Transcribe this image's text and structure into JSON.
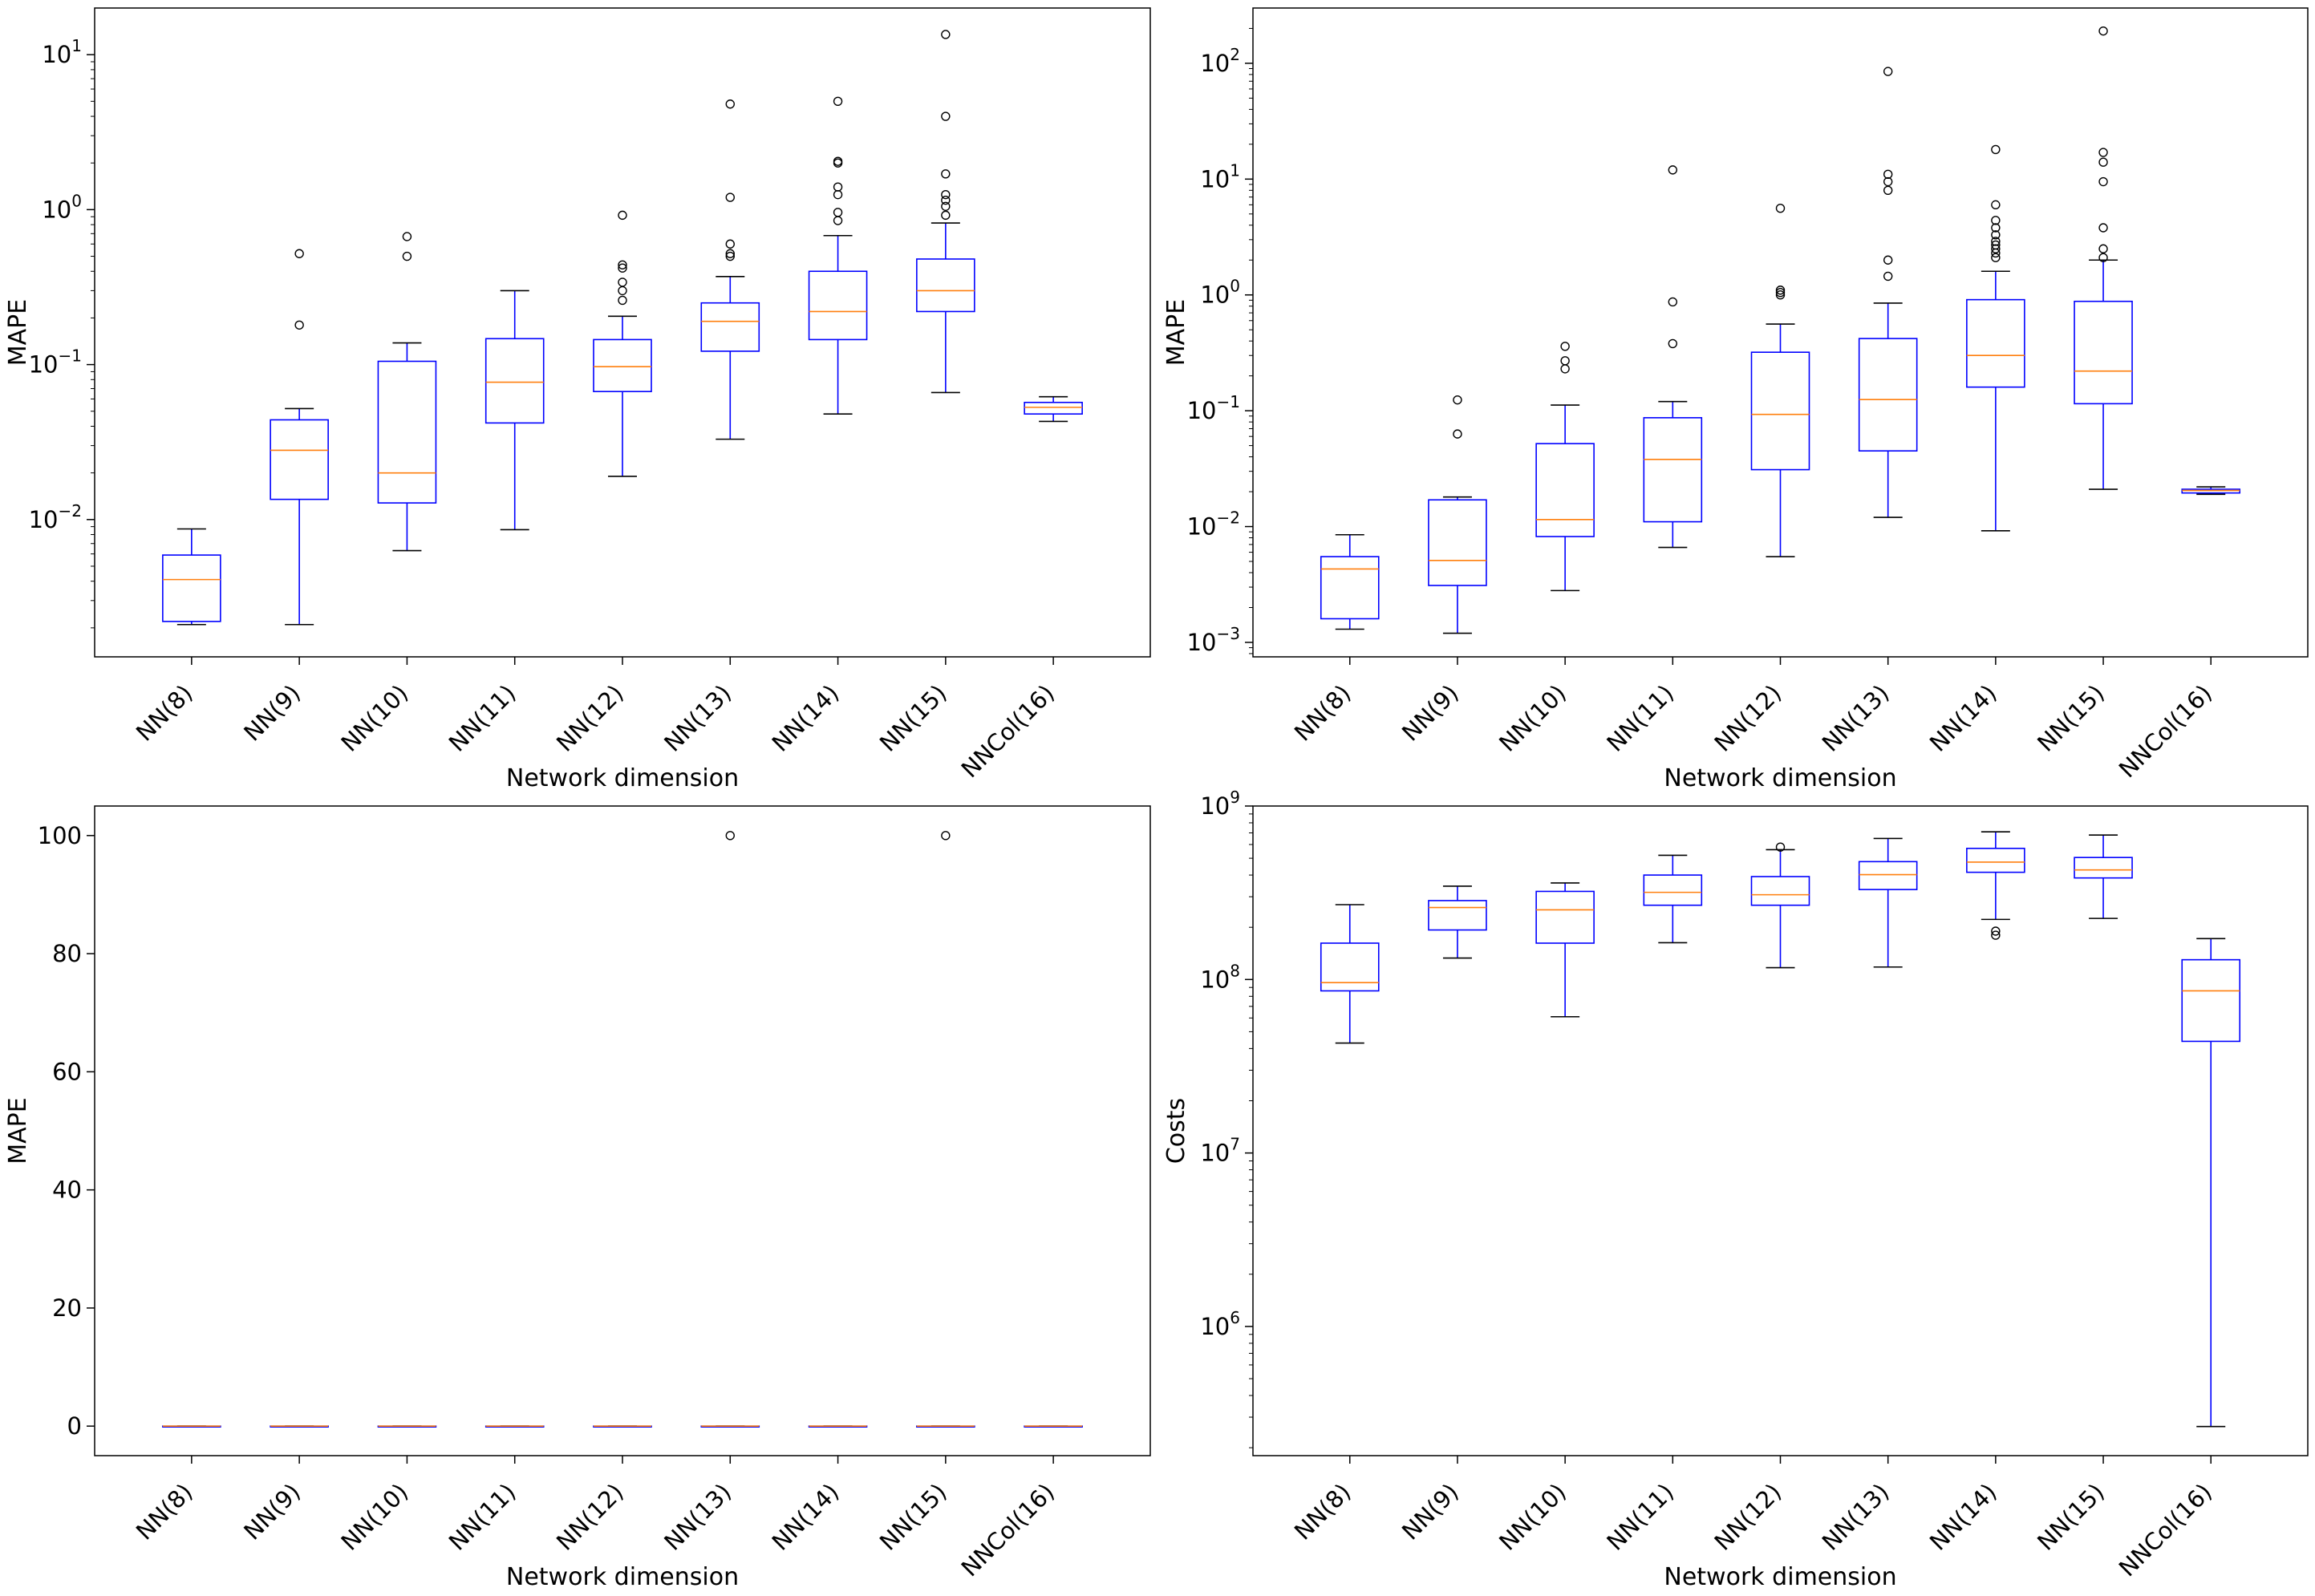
{
  "colors": {
    "box": "#0000ff",
    "median": "#ff7f0e",
    "whisker": "#000000",
    "flier": "#000000",
    "axes": "#000000",
    "background": "#ffffff"
  },
  "chart_data": [
    {
      "type": "box",
      "panel": "top-left",
      "xlabel": "Network dimension",
      "ylabel": "MAPE",
      "yscale": "log",
      "ylim": [
        0.0013,
        20
      ],
      "ytick_labels": [
        {
          "value": 0.01,
          "base": "10",
          "exp": "−2"
        },
        {
          "value": 0.1,
          "base": "10",
          "exp": "−1"
        },
        {
          "value": 1,
          "base": "10",
          "exp": "0"
        },
        {
          "value": 10,
          "base": "10",
          "exp": "1"
        }
      ],
      "categories": [
        "NN(8)",
        "NN(9)",
        "NN(10)",
        "NN(11)",
        "NN(12)",
        "NN(13)",
        "NN(14)",
        "NN(15)",
        "NNCol(16)"
      ],
      "boxes": [
        {
          "whislo": 0.0021,
          "q1": 0.0022,
          "med": 0.0041,
          "q3": 0.0059,
          "whishi": 0.0087,
          "fliers": []
        },
        {
          "whislo": 0.0021,
          "q1": 0.0135,
          "med": 0.028,
          "q3": 0.044,
          "whishi": 0.052,
          "fliers": [
            0.18,
            0.52
          ]
        },
        {
          "whislo": 0.0063,
          "q1": 0.0128,
          "med": 0.02,
          "q3": 0.105,
          "whishi": 0.138,
          "fliers": [
            0.5,
            0.67
          ]
        },
        {
          "whislo": 0.0086,
          "q1": 0.042,
          "med": 0.077,
          "q3": 0.147,
          "whishi": 0.3,
          "fliers": []
        },
        {
          "whislo": 0.019,
          "q1": 0.067,
          "med": 0.097,
          "q3": 0.145,
          "whishi": 0.205,
          "fliers": [
            0.26,
            0.3,
            0.34,
            0.42,
            0.44,
            0.92
          ]
        },
        {
          "whislo": 0.033,
          "q1": 0.122,
          "med": 0.19,
          "q3": 0.25,
          "whishi": 0.37,
          "fliers": [
            0.5,
            0.52,
            0.6,
            1.2,
            4.8
          ]
        },
        {
          "whislo": 0.048,
          "q1": 0.145,
          "med": 0.22,
          "q3": 0.4,
          "whishi": 0.68,
          "fliers": [
            0.85,
            0.96,
            1.25,
            1.4,
            2.0,
            2.05,
            5.0
          ]
        },
        {
          "whislo": 0.066,
          "q1": 0.22,
          "med": 0.3,
          "q3": 0.48,
          "whishi": 0.82,
          "fliers": [
            0.92,
            1.05,
            1.15,
            1.25,
            1.7,
            4.0,
            13.5
          ]
        },
        {
          "whislo": 0.043,
          "q1": 0.048,
          "med": 0.053,
          "q3": 0.057,
          "whishi": 0.062,
          "fliers": []
        }
      ]
    },
    {
      "type": "box",
      "panel": "top-right",
      "xlabel": "Network dimension",
      "ylabel": "MAPE",
      "yscale": "log",
      "ylim": [
        0.00075,
        300
      ],
      "ytick_labels": [
        {
          "value": 0.001,
          "base": "10",
          "exp": "−3"
        },
        {
          "value": 0.01,
          "base": "10",
          "exp": "−2"
        },
        {
          "value": 0.1,
          "base": "10",
          "exp": "−1"
        },
        {
          "value": 1,
          "base": "10",
          "exp": "0"
        },
        {
          "value": 10,
          "base": "10",
          "exp": "1"
        },
        {
          "value": 100,
          "base": "10",
          "exp": "2"
        }
      ],
      "categories": [
        "NN(8)",
        "NN(9)",
        "NN(10)",
        "NN(11)",
        "NN(12)",
        "NN(13)",
        "NN(14)",
        "NN(15)",
        "NNCol(16)"
      ],
      "boxes": [
        {
          "whislo": 0.0013,
          "q1": 0.0016,
          "med": 0.0043,
          "q3": 0.0055,
          "whishi": 0.0085,
          "fliers": []
        },
        {
          "whislo": 0.0012,
          "q1": 0.0031,
          "med": 0.0051,
          "q3": 0.017,
          "whishi": 0.018,
          "fliers": [
            0.063,
            0.124
          ]
        },
        {
          "whislo": 0.0028,
          "q1": 0.0082,
          "med": 0.0115,
          "q3": 0.052,
          "whishi": 0.112,
          "fliers": [
            0.23,
            0.27,
            0.36
          ]
        },
        {
          "whislo": 0.0066,
          "q1": 0.011,
          "med": 0.038,
          "q3": 0.087,
          "whishi": 0.12,
          "fliers": [
            0.38,
            0.87,
            12
          ]
        },
        {
          "whislo": 0.0055,
          "q1": 0.031,
          "med": 0.093,
          "q3": 0.32,
          "whishi": 0.56,
          "fliers": [
            1.0,
            1.05,
            1.1,
            5.6
          ]
        },
        {
          "whislo": 0.012,
          "q1": 0.045,
          "med": 0.125,
          "q3": 0.42,
          "whishi": 0.85,
          "fliers": [
            1.45,
            2.0,
            8.0,
            9.5,
            11,
            85
          ]
        },
        {
          "whislo": 0.0092,
          "q1": 0.16,
          "med": 0.3,
          "q3": 0.91,
          "whishi": 1.6,
          "fliers": [
            2.1,
            2.3,
            2.5,
            2.7,
            2.9,
            3.3,
            3.8,
            4.4,
            6.0,
            18
          ]
        },
        {
          "whislo": 0.021,
          "q1": 0.115,
          "med": 0.22,
          "q3": 0.88,
          "whishi": 2.0,
          "fliers": [
            2.1,
            2.5,
            3.8,
            9.5,
            14,
            17,
            190
          ]
        },
        {
          "whislo": 0.019,
          "q1": 0.0195,
          "med": 0.0205,
          "q3": 0.021,
          "whishi": 0.022,
          "fliers": []
        }
      ]
    },
    {
      "type": "box",
      "panel": "bottom-left",
      "xlabel": "Network dimension",
      "ylabel": "MAPE",
      "yscale": "linear",
      "ylim": [
        -5,
        105
      ],
      "ytick_labels": [
        {
          "value": 0,
          "text": "0"
        },
        {
          "value": 20,
          "text": "20"
        },
        {
          "value": 40,
          "text": "40"
        },
        {
          "value": 60,
          "text": "60"
        },
        {
          "value": 80,
          "text": "80"
        },
        {
          "value": 100,
          "text": "100"
        }
      ],
      "categories": [
        "NN(8)",
        "NN(9)",
        "NN(10)",
        "NN(11)",
        "NN(12)",
        "NN(13)",
        "NN(14)",
        "NN(15)",
        "NNCol(16)"
      ],
      "boxes": [
        {
          "whislo": 0,
          "q1": 0,
          "med": 0,
          "q3": 0,
          "whishi": 0,
          "fliers": []
        },
        {
          "whislo": 0,
          "q1": 0,
          "med": 0,
          "q3": 0,
          "whishi": 0,
          "fliers": []
        },
        {
          "whislo": 0,
          "q1": 0,
          "med": 0,
          "q3": 0,
          "whishi": 0,
          "fliers": []
        },
        {
          "whislo": 0,
          "q1": 0,
          "med": 0,
          "q3": 0,
          "whishi": 0,
          "fliers": []
        },
        {
          "whislo": 0,
          "q1": 0,
          "med": 0,
          "q3": 0,
          "whishi": 0,
          "fliers": []
        },
        {
          "whislo": 0,
          "q1": 0,
          "med": 0,
          "q3": 0,
          "whishi": 0,
          "fliers": [
            100
          ]
        },
        {
          "whislo": 0,
          "q1": 0,
          "med": 0,
          "q3": 0,
          "whishi": 0,
          "fliers": []
        },
        {
          "whislo": 0,
          "q1": 0,
          "med": 0,
          "q3": 0,
          "whishi": 0,
          "fliers": [
            100
          ]
        },
        {
          "whislo": 0,
          "q1": 0,
          "med": 0,
          "q3": 0,
          "whishi": 0,
          "fliers": []
        }
      ]
    },
    {
      "type": "box",
      "panel": "bottom-right",
      "xlabel": "Network dimension",
      "ylabel": "Costs",
      "yscale": "log",
      "ylim": [
        180000,
        1000000000
      ],
      "ytick_labels": [
        {
          "value": 1000000,
          "base": "10",
          "exp": "6"
        },
        {
          "value": 10000000,
          "base": "10",
          "exp": "7"
        },
        {
          "value": 100000000,
          "base": "10",
          "exp": "8"
        },
        {
          "value": 1000000000,
          "base": "10",
          "exp": "9"
        }
      ],
      "categories": [
        "NN(8)",
        "NN(9)",
        "NN(10)",
        "NN(11)",
        "NN(12)",
        "NN(13)",
        "NN(14)",
        "NN(15)",
        "NNCol(16)"
      ],
      "boxes": [
        {
          "whislo": 43000000,
          "q1": 86000000,
          "med": 96000000,
          "q3": 162000000,
          "whishi": 270000000,
          "fliers": []
        },
        {
          "whislo": 133000000,
          "q1": 193000000,
          "med": 260000000,
          "q3": 285000000,
          "whishi": 345000000,
          "fliers": []
        },
        {
          "whislo": 61000000,
          "q1": 162000000,
          "med": 252000000,
          "q3": 322000000,
          "whishi": 360000000,
          "fliers": []
        },
        {
          "whislo": 163000000,
          "q1": 268000000,
          "med": 318000000,
          "q3": 400000000,
          "whishi": 520000000,
          "fliers": []
        },
        {
          "whislo": 117000000,
          "q1": 268000000,
          "med": 308000000,
          "q3": 392000000,
          "whishi": 560000000,
          "fliers": [
            580000000
          ]
        },
        {
          "whislo": 118000000,
          "q1": 330000000,
          "med": 402000000,
          "q3": 478000000,
          "whishi": 650000000,
          "fliers": []
        },
        {
          "whislo": 222000000,
          "q1": 415000000,
          "med": 475000000,
          "q3": 570000000,
          "whishi": 710000000,
          "fliers": [
            180000000,
            190000000
          ]
        },
        {
          "whislo": 225000000,
          "q1": 385000000,
          "med": 428000000,
          "q3": 505000000,
          "whishi": 680000000,
          "fliers": []
        },
        {
          "whislo": 265000,
          "q1": 44000000,
          "med": 86000000,
          "q3": 130000000,
          "whishi": 172000000,
          "fliers": []
        }
      ]
    }
  ]
}
